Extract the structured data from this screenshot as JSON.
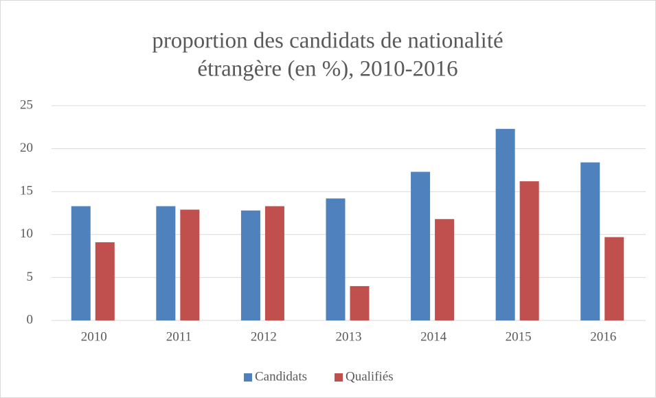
{
  "chart_data": {
    "type": "bar",
    "title": [
      "proportion des candidats de nationalité",
      "étrangère (en %), 2010-2016"
    ],
    "categories": [
      "2010",
      "2011",
      "2012",
      "2013",
      "2014",
      "2015",
      "2016"
    ],
    "series": [
      {
        "name": "Candidats",
        "color": "#4f81bd",
        "values": [
          13.3,
          13.3,
          12.8,
          14.2,
          17.3,
          22.3,
          18.4
        ]
      },
      {
        "name": "Qualifiés",
        "color": "#c0504d",
        "values": [
          9.1,
          12.9,
          13.3,
          4.0,
          11.8,
          16.2,
          9.7
        ]
      }
    ],
    "ylim": [
      0,
      25
    ],
    "yticks": [
      0,
      5,
      10,
      15,
      20,
      25
    ],
    "grid": true,
    "legend": "bottom"
  }
}
